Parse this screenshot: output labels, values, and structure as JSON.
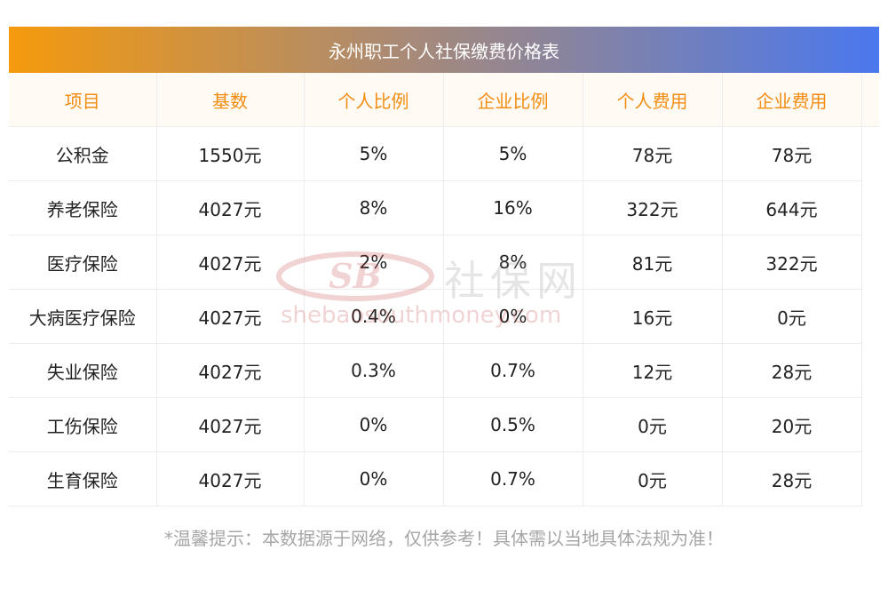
{
  "title": "永州职工个人社保缴费价格表",
  "table": {
    "headers": [
      "项目",
      "基数",
      "个人比例",
      "企业比例",
      "个人费用",
      "企业费用"
    ],
    "rows": [
      [
        "公积金",
        "1550元",
        "5%",
        "5%",
        "78元",
        "78元"
      ],
      [
        "养老保险",
        "4027元",
        "8%",
        "16%",
        "322元",
        "644元"
      ],
      [
        "医疗保险",
        "4027元",
        "2%",
        "8%",
        "81元",
        "322元"
      ],
      [
        "大病医疗保险",
        "4027元",
        "0.4%",
        "0%",
        "16元",
        "0元"
      ],
      [
        "失业保险",
        "4027元",
        "0.3%",
        "0.7%",
        "12元",
        "28元"
      ],
      [
        "工伤保险",
        "4027元",
        "0%",
        "0.5%",
        "0元",
        "20元"
      ],
      [
        "生育保险",
        "4027元",
        "0%",
        "0.7%",
        "0元",
        "28元"
      ]
    ]
  },
  "watermark": {
    "logo_text": "SB",
    "cn_text": "社保网",
    "url": "shebaosouthmoney.com"
  },
  "footer_note": "*温馨提示：本数据源于网络，仅供参考！具体需以当地具体法规为准！"
}
